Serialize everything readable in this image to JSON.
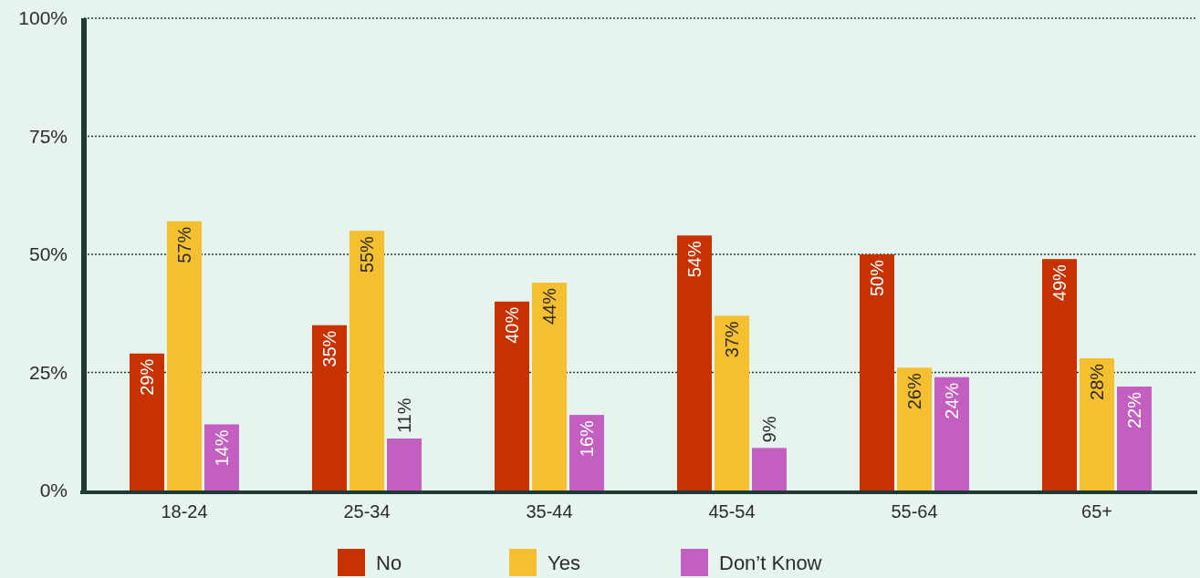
{
  "chart_data": {
    "type": "bar",
    "categories": [
      "18-24",
      "25-34",
      "35-44",
      "45-54",
      "55-64",
      "65+"
    ],
    "series": [
      {
        "name": "No",
        "color": "#c83200",
        "values": [
          29,
          35,
          40,
          54,
          50,
          49
        ],
        "value_labels": [
          "29%",
          "35%",
          "40%",
          "54%",
          "50%",
          "49%"
        ]
      },
      {
        "name": "Yes",
        "color": "#f5c030",
        "values": [
          57,
          55,
          44,
          37,
          26,
          28
        ],
        "value_labels": [
          "57%",
          "55%",
          "44%",
          "37%",
          "26%",
          "28%"
        ]
      },
      {
        "name": "Don’t Know",
        "color": "#c35fc0",
        "values": [
          14,
          11,
          16,
          9,
          24,
          22
        ],
        "value_labels": [
          "14%",
          "11%",
          "16%",
          "9%",
          "24%",
          "22%"
        ]
      }
    ],
    "ylim": [
      0,
      100
    ],
    "yticks": [
      {
        "value": 0,
        "label": "0%"
      },
      {
        "value": 25,
        "label": "25%"
      },
      {
        "value": 50,
        "label": "50%"
      },
      {
        "value": 75,
        "label": "75%"
      },
      {
        "value": 100,
        "label": "100%"
      }
    ],
    "grid": "y",
    "legend": "bottom"
  }
}
